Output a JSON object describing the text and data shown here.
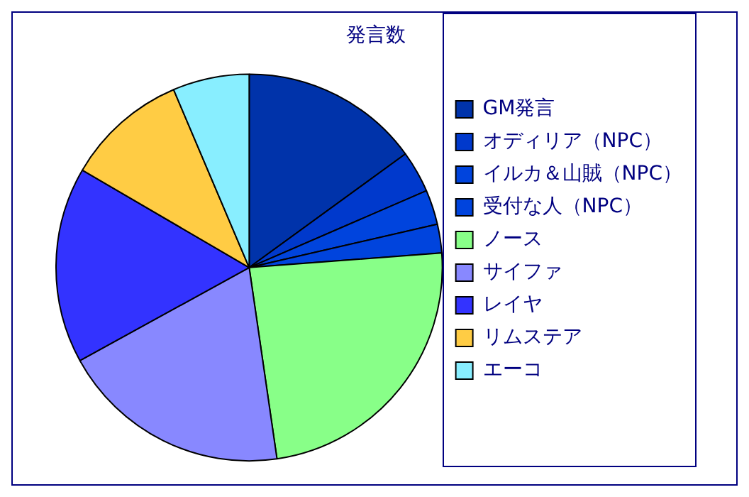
{
  "chart_data": {
    "type": "pie",
    "title": "発言数",
    "categories": [
      "GM発言",
      "オディリア（NPC）",
      "イルカ＆山賊（NPC）",
      "受付な人（NPC）",
      "ノース",
      "サイファ",
      "レイヤ",
      "リムステア",
      "エーコ"
    ],
    "values": [
      15,
      3.5,
      2.9,
      2.4,
      23.9,
      19.3,
      16.4,
      10.2,
      6.4
    ],
    "colors": [
      "#0033aa",
      "#0039cc",
      "#0044dd",
      "#0044dd",
      "#88ff88",
      "#8888ff",
      "#3333ff",
      "#ffcc44",
      "#88eeff"
    ],
    "legend": "right"
  }
}
